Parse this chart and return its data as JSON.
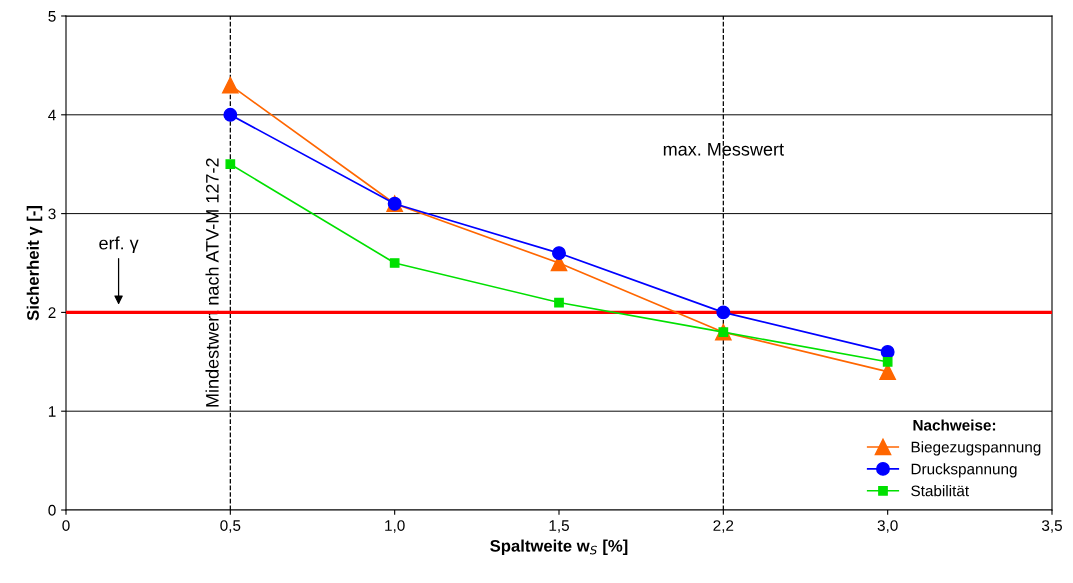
{
  "chart_data": {
    "type": "line",
    "xlabel": "Spaltweite w$_{S}$ [%]",
    "ylabel": "Sicherheit γ [-]",
    "categories": [
      "0",
      "0,5",
      "1,0",
      "1,5",
      "2,2",
      "3,0",
      "3,5"
    ],
    "series": [
      {
        "name": "Biegezugspannung",
        "color": "#ff6600",
        "marker": "triangle",
        "values": [
          null,
          4.3,
          3.1,
          2.5,
          1.8,
          1.4,
          null
        ]
      },
      {
        "name": "Druckspannung",
        "color": "#0000ff",
        "marker": "circle",
        "values": [
          null,
          4.0,
          3.1,
          2.6,
          2.0,
          1.6,
          null
        ]
      },
      {
        "name": "Stabilität",
        "color": "#00e000",
        "marker": "square",
        "values": [
          null,
          3.5,
          2.5,
          2.1,
          1.8,
          1.5,
          null
        ]
      }
    ],
    "ylim": [
      0,
      5
    ],
    "yticks": [
      0,
      1,
      2,
      3,
      4,
      5
    ],
    "grid": "y",
    "legend": "bottom right",
    "legend_title": "Nachweise:",
    "ref_lines": [
      {
        "axis": "x",
        "value": "0,5",
        "label": "Mindestwert nach ATV-M 127-2",
        "color": "#000000",
        "line_style": "dashed"
      },
      {
        "axis": "x",
        "value": "2,2",
        "label": "max. Messwert",
        "color": "#000000",
        "line_style": "dashed"
      },
      {
        "axis": "y",
        "value": 2,
        "label": "erf. γ",
        "color": "#ff0000",
        "line_style": "solid"
      }
    ]
  }
}
